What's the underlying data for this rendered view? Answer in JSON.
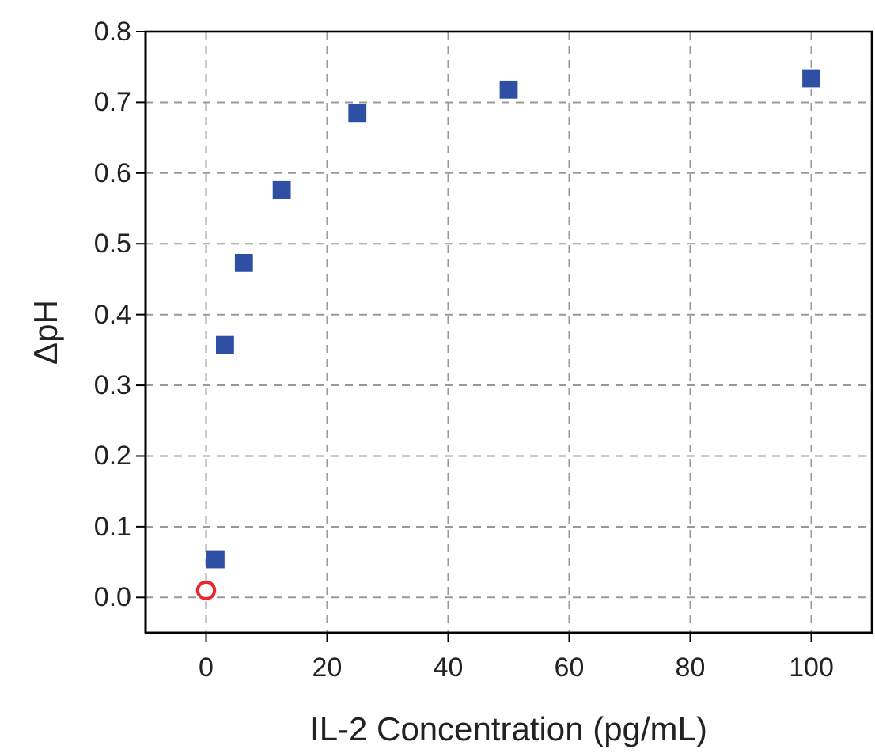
{
  "chart_data": {
    "type": "scatter",
    "xlabel": "IL-2 Concentration (pg/mL)",
    "ylabel": "ΔpH",
    "xlim": [
      -10,
      110
    ],
    "xticks": [
      0,
      20,
      40,
      60,
      80,
      100
    ],
    "ylim": [
      -0.05,
      0.8
    ],
    "yticks": [
      {
        "value": 0,
        "label": "0.0"
      },
      {
        "value": 0.1,
        "label": "0.1"
      },
      {
        "value": 0.2,
        "label": "0.2"
      },
      {
        "value": 0.3,
        "label": "0.3"
      },
      {
        "value": 0.4,
        "label": "0.4"
      },
      {
        "value": 0.5,
        "label": "0.5"
      },
      {
        "value": 0.6,
        "label": "0.6"
      },
      {
        "value": 0.7,
        "label": "0.7"
      },
      {
        "value": 0.8,
        "label": "0.8"
      }
    ],
    "grid": true,
    "series": [
      {
        "color": "#2e4fa3",
        "marker": "square",
        "x": [
          1.5625,
          3.125,
          6.25,
          12.5,
          25,
          50,
          100
        ],
        "values": [
          0.054,
          0.357,
          0.473,
          0.576,
          0.685,
          0.718,
          0.734
        ]
      },
      {
        "color": "#e8262b",
        "marker": "circle",
        "x": [
          0
        ],
        "values": [
          0.01
        ]
      }
    ]
  }
}
